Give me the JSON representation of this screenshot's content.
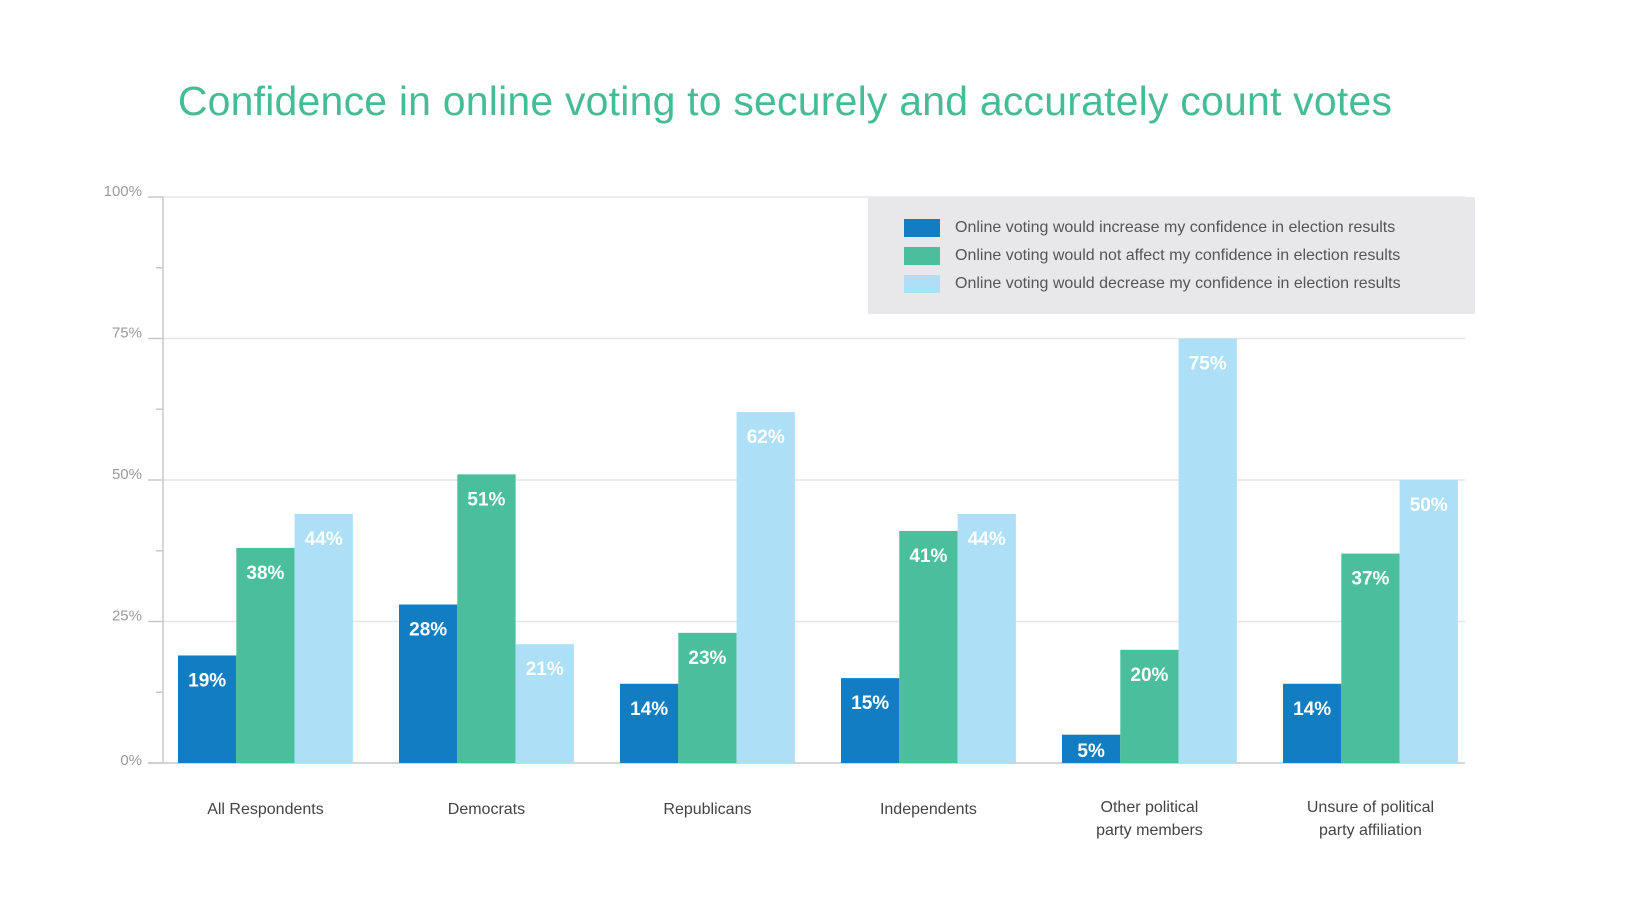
{
  "chart_data": {
    "type": "bar",
    "title": "Confidence in online voting to securely and accurately count votes",
    "xlabel": "",
    "ylabel": "",
    "ylim": [
      0,
      100
    ],
    "yticks": [
      0,
      25,
      50,
      75,
      100
    ],
    "ytick_labels": [
      "0%",
      "25%",
      "50%",
      "75%",
      "100%"
    ],
    "grid": true,
    "legend_position": "top-right",
    "categories": [
      [
        "All Respondents"
      ],
      [
        "Democrats"
      ],
      [
        "Republicans"
      ],
      [
        "Independents"
      ],
      [
        "Other political",
        "party members"
      ],
      [
        "Unsure of political",
        "party affiliation"
      ]
    ],
    "series": [
      {
        "name": "Online voting would increase my confidence in election results",
        "color": "#127ec1",
        "values": [
          19,
          28,
          14,
          15,
          5,
          14
        ]
      },
      {
        "name": "Online voting would not affect my confidence in election results",
        "color": "#4bbf9b",
        "values": [
          38,
          51,
          23,
          41,
          20,
          37
        ]
      },
      {
        "name": "Online voting would decrease my confidence in election results",
        "color": "#ade0f7",
        "values": [
          44,
          21,
          62,
          44,
          75,
          50
        ]
      }
    ],
    "value_label_suffix": "%"
  },
  "colors": {
    "title": "#45bc95",
    "legend_background": "#e8e8ea",
    "grid": "#e6e6e6",
    "axis": "#c8c8c8"
  }
}
